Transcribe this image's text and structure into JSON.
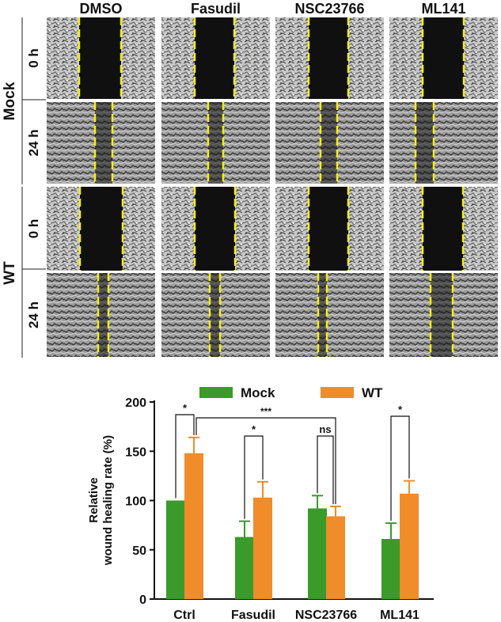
{
  "micrographs": {
    "columns": [
      "DMSO",
      "Fasudil",
      "NSC23766",
      "ML141"
    ],
    "groups": [
      {
        "label": "Mock",
        "rows": [
          "0 h",
          "24 h"
        ]
      },
      {
        "label": "WT",
        "rows": [
          "0 h",
          "24 h"
        ]
      }
    ]
  },
  "chart_data": {
    "type": "bar",
    "categories": [
      "Ctrl",
      "Fasudil",
      "NSC23766",
      "ML141"
    ],
    "series": [
      {
        "name": "Mock",
        "color": "#3a9a2a",
        "values": [
          100,
          63,
          92,
          61
        ],
        "errors": [
          0,
          16,
          13,
          16
        ]
      },
      {
        "name": "WT",
        "color": "#f08c2a",
        "values": [
          148,
          103,
          84,
          107
        ],
        "errors": [
          16,
          16,
          10,
          13
        ]
      }
    ],
    "ylabel_lines": [
      "Relative",
      "wound healing rate (%)"
    ],
    "ylim": [
      0,
      200
    ],
    "yticks": [
      0,
      50,
      100,
      150,
      200
    ],
    "legend_position": "top",
    "significance": [
      {
        "between": "Ctrl Mock vs Ctrl WT",
        "label": "*"
      },
      {
        "between": "Ctrl WT vs NSC23766 WT",
        "label": "***"
      },
      {
        "between": "Fasudil Mock vs Fasudil WT",
        "label": "*"
      },
      {
        "between": "NSC23766 Mock vs NSC23766 WT",
        "label": "ns"
      },
      {
        "between": "ML141 Mock vs ML141 WT",
        "label": "*"
      }
    ]
  }
}
